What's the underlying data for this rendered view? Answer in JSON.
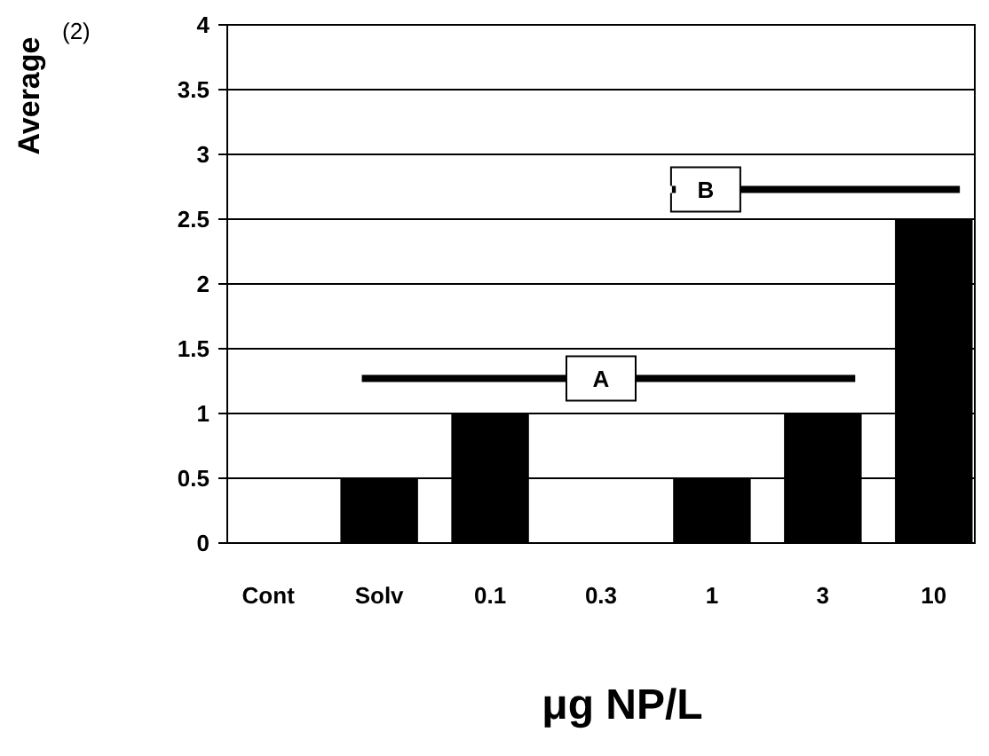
{
  "chart_data": {
    "type": "bar",
    "title": "(2)",
    "ylabel": "Average",
    "xlabel": "μg NP/L",
    "categories": [
      "Cont",
      "Solv",
      "0.1",
      "0.3",
      "1",
      "3",
      "10"
    ],
    "values": [
      0,
      0.5,
      1,
      0,
      0.5,
      1,
      2.5
    ],
    "color": "#000000",
    "ylim": [
      0,
      4
    ],
    "yticks": [
      0,
      0.5,
      1,
      1.5,
      2,
      2.5,
      3,
      3.5,
      4
    ],
    "grid": "y",
    "annotations": [
      {
        "text": "A",
        "y": 1.27
      },
      {
        "text": "B",
        "y": 2.73
      }
    ]
  }
}
